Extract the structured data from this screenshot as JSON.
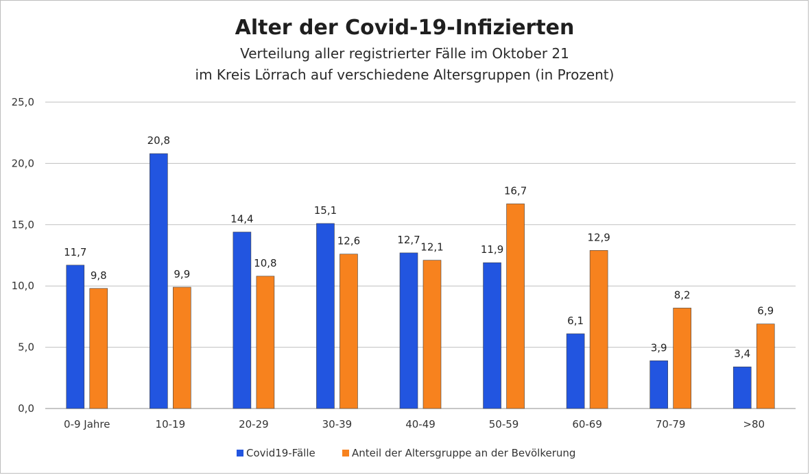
{
  "chart_data": {
    "type": "bar",
    "title": "Alter der Covid-19-Infizierten",
    "subtitle_lines": [
      "Verteilung aller registrierter Fälle im Oktober 21",
      "im Kreis Lörrach auf verschiedene Altersgruppen (in Prozent)"
    ],
    "categories": [
      "0-9 Jahre",
      "10-19",
      "20-29",
      "30-39",
      "40-49",
      "50-59",
      "60-69",
      "70-79",
      ">80"
    ],
    "series": [
      {
        "name": "Covid19-Fälle",
        "color": "#2255e0",
        "values": [
          11.7,
          20.8,
          14.4,
          15.1,
          12.7,
          11.9,
          6.1,
          3.9,
          3.4
        ],
        "labels": [
          "11,7",
          "20,8",
          "14,4",
          "15,1",
          "12,7",
          "11,9",
          "6,1",
          "3,9",
          "3,4"
        ]
      },
      {
        "name": "Anteil der Altersgruppe an der Bevölkerung",
        "color": "#f7821e",
        "values": [
          9.8,
          9.9,
          10.8,
          12.6,
          12.1,
          16.7,
          12.9,
          8.2,
          6.9
        ],
        "labels": [
          "9,8",
          "9,9",
          "10,8",
          "12,6",
          "12,1",
          "16,7",
          "12,9",
          "8,2",
          "6,9"
        ]
      }
    ],
    "ylim": [
      0,
      25
    ],
    "yticks": [
      0,
      5,
      10,
      15,
      20,
      25
    ],
    "ytick_labels": [
      "0,0",
      "5,0",
      "10,0",
      "15,0",
      "20,0",
      "25,0"
    ],
    "grid": true,
    "legend_position": "bottom-center",
    "xlabel": "",
    "ylabel": ""
  }
}
